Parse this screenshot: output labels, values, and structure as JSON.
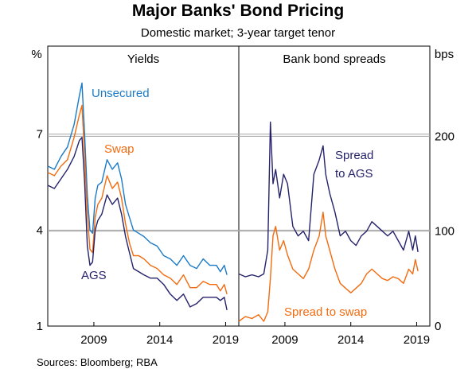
{
  "title": "Major Banks' Bond Pricing",
  "subtitle": "Domestic market; 3-year target tenor",
  "source": "Sources:   Bloomberg; RBA",
  "chart_data": [
    {
      "type": "line",
      "panel_title": "Yields",
      "unit_label": "%",
      "ylim": [
        1,
        9.75
      ],
      "yticks": [
        1,
        4,
        7
      ],
      "xlim": [
        2005.5,
        2020.0
      ],
      "xticks": [
        2009,
        2014,
        2019
      ],
      "xtick_labels": [
        "2009",
        "2014",
        "2019"
      ],
      "series": [
        {
          "name": "Unsecured",
          "color": "#1a7ac8",
          "x": [
            2005.5,
            2006.0,
            2006.5,
            2007.0,
            2007.5,
            2007.9,
            2008.1,
            2008.3,
            2008.5,
            2008.7,
            2008.9,
            2009.1,
            2009.3,
            2009.6,
            2010.0,
            2010.4,
            2010.8,
            2011.1,
            2011.4,
            2011.7,
            2012.0,
            2012.4,
            2012.8,
            2013.3,
            2013.8,
            2014.3,
            2014.8,
            2015.3,
            2015.8,
            2016.3,
            2016.8,
            2017.3,
            2017.8,
            2018.3,
            2018.6,
            2018.9,
            2019.1
          ],
          "y": [
            6.0,
            5.9,
            6.3,
            6.6,
            7.3,
            8.2,
            8.6,
            7.0,
            5.1,
            4.0,
            3.9,
            5.0,
            5.4,
            5.5,
            6.2,
            5.9,
            6.1,
            5.6,
            4.8,
            4.4,
            4.0,
            3.9,
            3.8,
            3.6,
            3.5,
            3.2,
            3.1,
            2.9,
            3.2,
            2.9,
            2.8,
            3.1,
            2.9,
            2.9,
            2.7,
            2.9,
            2.6
          ]
        },
        {
          "name": "Swap",
          "color": "#f26b0f",
          "x": [
            2005.5,
            2006.0,
            2006.5,
            2007.0,
            2007.5,
            2007.9,
            2008.1,
            2008.3,
            2008.5,
            2008.7,
            2008.9,
            2009.1,
            2009.3,
            2009.6,
            2010.0,
            2010.4,
            2010.8,
            2011.1,
            2011.4,
            2011.7,
            2012.0,
            2012.4,
            2012.8,
            2013.3,
            2013.8,
            2014.3,
            2014.8,
            2015.3,
            2015.8,
            2016.3,
            2016.8,
            2017.3,
            2017.8,
            2018.3,
            2018.6,
            2018.9,
            2019.1
          ],
          "y": [
            5.8,
            5.7,
            6.0,
            6.2,
            6.9,
            7.6,
            7.9,
            6.3,
            4.5,
            3.4,
            3.3,
            4.4,
            4.8,
            5.0,
            5.7,
            5.3,
            5.5,
            5.0,
            4.2,
            3.6,
            3.2,
            3.2,
            3.1,
            2.9,
            2.8,
            2.6,
            2.5,
            2.3,
            2.6,
            2.2,
            2.2,
            2.4,
            2.3,
            2.3,
            2.1,
            2.3,
            2.0
          ]
        },
        {
          "name": "AGS",
          "color": "#24226b",
          "x": [
            2005.5,
            2006.0,
            2006.5,
            2007.0,
            2007.5,
            2007.9,
            2008.1,
            2008.3,
            2008.5,
            2008.7,
            2008.9,
            2009.1,
            2009.3,
            2009.6,
            2010.0,
            2010.4,
            2010.8,
            2011.1,
            2011.4,
            2011.7,
            2012.0,
            2012.4,
            2012.8,
            2013.3,
            2013.8,
            2014.3,
            2014.8,
            2015.3,
            2015.8,
            2016.3,
            2016.8,
            2017.3,
            2017.8,
            2018.3,
            2018.6,
            2018.9,
            2019.1
          ],
          "y": [
            5.4,
            5.3,
            5.6,
            5.9,
            6.3,
            6.8,
            6.9,
            5.5,
            3.5,
            2.9,
            3.0,
            4.0,
            4.3,
            4.5,
            5.1,
            4.8,
            5.0,
            4.5,
            3.8,
            3.3,
            2.8,
            2.7,
            2.6,
            2.5,
            2.5,
            2.3,
            2.0,
            1.8,
            2.0,
            1.6,
            1.7,
            1.9,
            1.9,
            1.9,
            1.8,
            1.9,
            1.5
          ]
        }
      ],
      "annotations": [
        "Unsecured",
        "Swap",
        "AGS"
      ]
    },
    {
      "type": "line",
      "panel_title": "Bank bond spreads",
      "unit_label": "bps",
      "ylim": [
        0,
        295
      ],
      "yticks": [
        0,
        100,
        200
      ],
      "xlim": [
        2005.5,
        2020.0
      ],
      "xticks": [
        2009,
        2014,
        2019
      ],
      "xtick_labels": [
        "2009",
        "2014",
        "2019"
      ],
      "series": [
        {
          "name": "Spread to AGS",
          "color": "#24226b",
          "x": [
            2005.5,
            2006.0,
            2006.5,
            2007.0,
            2007.4,
            2007.7,
            2007.9,
            2008.1,
            2008.3,
            2008.6,
            2008.9,
            2009.2,
            2009.6,
            2010.0,
            2010.4,
            2010.8,
            2011.2,
            2011.6,
            2011.9,
            2012.1,
            2012.4,
            2012.8,
            2013.2,
            2013.6,
            2014.0,
            2014.4,
            2014.8,
            2015.2,
            2015.6,
            2016.0,
            2016.4,
            2016.8,
            2017.2,
            2017.6,
            2018.0,
            2018.4,
            2018.7,
            2018.9,
            2019.1
          ],
          "y": [
            55,
            52,
            54,
            52,
            55,
            80,
            215,
            150,
            165,
            135,
            160,
            150,
            105,
            95,
            100,
            90,
            160,
            175,
            190,
            160,
            140,
            120,
            95,
            100,
            90,
            85,
            95,
            100,
            110,
            105,
            100,
            95,
            100,
            90,
            80,
            100,
            80,
            95,
            78
          ]
        },
        {
          "name": "Spread to swap",
          "color": "#f26b0f",
          "x": [
            2005.5,
            2006.0,
            2006.5,
            2007.0,
            2007.4,
            2007.7,
            2007.9,
            2008.1,
            2008.3,
            2008.6,
            2008.9,
            2009.2,
            2009.6,
            2010.0,
            2010.4,
            2010.8,
            2011.2,
            2011.6,
            2011.9,
            2012.1,
            2012.4,
            2012.8,
            2013.2,
            2013.6,
            2014.0,
            2014.4,
            2014.8,
            2015.2,
            2015.6,
            2016.0,
            2016.4,
            2016.8,
            2017.2,
            2017.6,
            2018.0,
            2018.4,
            2018.7,
            2018.9,
            2019.1
          ],
          "y": [
            5,
            10,
            8,
            12,
            5,
            15,
            50,
            95,
            105,
            80,
            90,
            75,
            60,
            55,
            50,
            60,
            80,
            95,
            120,
            95,
            80,
            60,
            45,
            40,
            35,
            40,
            45,
            55,
            60,
            55,
            50,
            48,
            52,
            50,
            45,
            60,
            55,
            70,
            58
          ]
        }
      ],
      "annotations": [
        "Spread",
        "to AGS",
        "Spread to swap"
      ]
    }
  ]
}
